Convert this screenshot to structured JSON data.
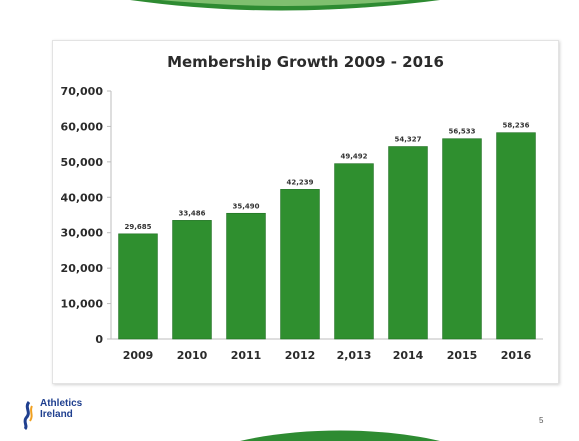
{
  "slide": {
    "logo_line1": "Athletics",
    "logo_line2": "Ireland",
    "page_number": "5"
  },
  "colors": {
    "bar": "#2f8f2f",
    "bar_dark": "#1f6f22",
    "wave": "#2e8b32",
    "logo_blue": "#1f3f8f"
  },
  "chart_data": {
    "type": "bar",
    "title": "Membership Growth 2009 - 2016",
    "categories": [
      "2009",
      "2010",
      "2011",
      "2012",
      "2,013",
      "2014",
      "2015",
      "2016"
    ],
    "values": [
      29685,
      33486,
      35490,
      42239,
      49492,
      54327,
      56533,
      58236
    ],
    "data_labels": [
      "29,685",
      "33,486",
      "35,490",
      "42,239",
      "49,492",
      "54,327",
      "56,533",
      "58,236"
    ],
    "ylim": [
      0,
      70000
    ],
    "yticks": [
      0,
      10000,
      20000,
      30000,
      40000,
      50000,
      60000,
      70000
    ],
    "ytick_labels": [
      "0",
      "10,000",
      "20,000",
      "30,000",
      "40,000",
      "50,000",
      "60,000",
      "70,000"
    ],
    "grid": false,
    "xlabel": "",
    "ylabel": ""
  }
}
